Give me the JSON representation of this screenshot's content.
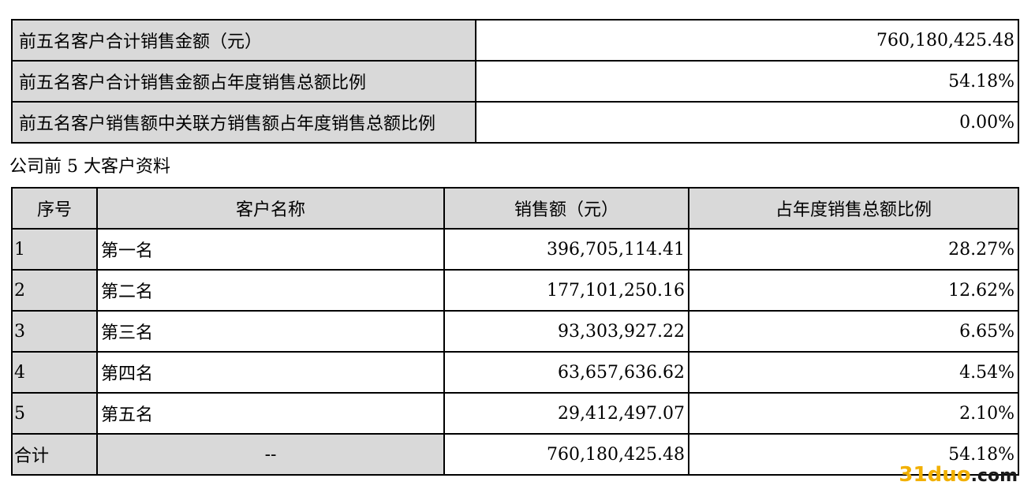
{
  "summary": {
    "rows": [
      {
        "label": "前五名客户合计销售金额（元）",
        "value": "760,180,425.48"
      },
      {
        "label": "前五名客户合计销售金额占年度销售总额比例",
        "value": "54.18%"
      },
      {
        "label": "前五名客户销售额中关联方销售额占年度销售总额比例",
        "value": "0.00%"
      }
    ]
  },
  "caption": "公司前 5 大客户资料",
  "customers": {
    "headers": [
      "序号",
      "客户名称",
      "销售额（元）",
      "占年度销售总额比例"
    ],
    "rows": [
      {
        "index": "1",
        "name": "第一名",
        "amount": "396,705,114.41",
        "ratio": "28.27%"
      },
      {
        "index": "2",
        "name": "第二名",
        "amount": "177,101,250.16",
        "ratio": "12.62%"
      },
      {
        "index": "3",
        "name": "第三名",
        "amount": "93,303,927.22",
        "ratio": "6.65%"
      },
      {
        "index": "4",
        "name": "第四名",
        "amount": "63,657,636.62",
        "ratio": "4.54%"
      },
      {
        "index": "5",
        "name": "第五名",
        "amount": "29,412,497.07",
        "ratio": "2.10%"
      }
    ],
    "total": {
      "label": "合计",
      "name": "--",
      "amount": "760,180,425.48",
      "ratio": "54.18%"
    }
  },
  "watermark": {
    "num": "31",
    "domain": "duo",
    "tld": ".com"
  },
  "colors": {
    "header_gray": "#d9d9d9",
    "border": "#000000",
    "watermark": "#f2b000"
  }
}
